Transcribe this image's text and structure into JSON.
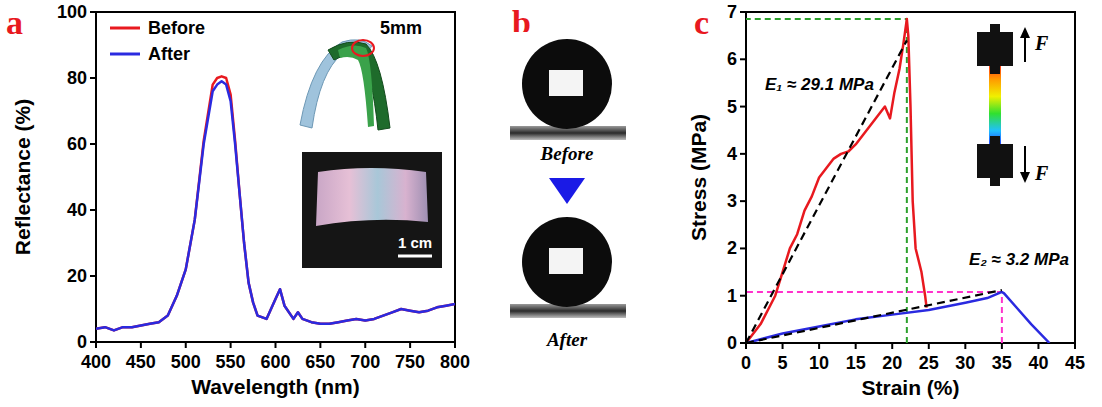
{
  "chart_data": [
    {
      "panel": "a",
      "type": "line",
      "xlabel": "Wavelength (nm)",
      "ylabel": "Reflectance (%)",
      "x": [
        400,
        410,
        420,
        430,
        440,
        450,
        460,
        470,
        480,
        490,
        500,
        510,
        520,
        530,
        535,
        540,
        545,
        550,
        555,
        560,
        565,
        570,
        575,
        580,
        590,
        600,
        605,
        610,
        620,
        625,
        630,
        640,
        650,
        660,
        670,
        680,
        690,
        700,
        710,
        720,
        730,
        740,
        750,
        760,
        770,
        780,
        790,
        800
      ],
      "series": [
        {
          "name": "Before",
          "color": "#e8191f",
          "values": [
            4,
            4.5,
            3.5,
            4.5,
            4.5,
            5,
            5.5,
            6,
            8,
            14,
            22,
            37,
            61,
            78,
            80,
            80.5,
            80,
            75,
            61,
            45,
            30,
            18,
            12,
            8,
            7,
            13,
            16,
            11,
            7,
            9,
            7,
            6,
            5.5,
            5.5,
            6,
            6.5,
            7,
            6.5,
            7,
            8,
            9,
            10,
            9.5,
            9,
            9.5,
            10.5,
            11,
            11.5
          ]
        },
        {
          "name": "After",
          "color": "#2a2ae0",
          "values": [
            4,
            4.5,
            3.5,
            4.5,
            4.5,
            5,
            5.5,
            6,
            8,
            14,
            22,
            37,
            60,
            76,
            78,
            79,
            78,
            73,
            60,
            45,
            30,
            18,
            12,
            8,
            7,
            13,
            16,
            11,
            7,
            9,
            7,
            6,
            5.5,
            5.5,
            6,
            6.5,
            7,
            6.5,
            7,
            8,
            9,
            10,
            9.5,
            9,
            9.5,
            10.5,
            11,
            11.5
          ]
        }
      ],
      "xlim": [
        400,
        800
      ],
      "xticks": [
        400,
        450,
        500,
        550,
        600,
        650,
        700,
        750,
        800
      ],
      "ylim": [
        0,
        100
      ],
      "yticks": [
        0,
        20,
        40,
        60,
        80,
        100
      ],
      "legend": "upper left",
      "annotations": [
        "5mm",
        "1 cm"
      ]
    },
    {
      "panel": "b",
      "type": "image",
      "captions": [
        "Before",
        "After"
      ]
    },
    {
      "panel": "c",
      "type": "line",
      "xlabel": "Strain (%)",
      "ylabel": "Stress (MPa)",
      "series": [
        {
          "color": "#e8191f",
          "x": [
            0,
            2,
            4,
            5,
            6,
            7,
            8,
            9,
            10,
            11,
            12,
            13,
            14,
            15,
            16,
            17,
            18,
            19,
            19.7,
            20.3,
            21,
            21.5,
            22,
            22.2,
            22.5,
            22.8,
            23.2,
            24,
            24.5,
            24.7
          ],
          "values": [
            0,
            0.4,
            1.0,
            1.5,
            2.0,
            2.3,
            2.8,
            3.1,
            3.5,
            3.7,
            3.9,
            4.0,
            4.05,
            4.2,
            4.4,
            4.6,
            4.8,
            5.0,
            4.75,
            5.3,
            5.8,
            6.3,
            6.85,
            6.5,
            5.0,
            3.0,
            2.0,
            1.5,
            1.0,
            0.75
          ]
        },
        {
          "color": "#2a2ae0",
          "x": [
            0,
            5,
            10,
            15,
            20,
            25,
            30,
            33,
            35,
            35.3,
            37,
            39,
            41.5
          ],
          "values": [
            0,
            0.2,
            0.35,
            0.5,
            0.6,
            0.7,
            0.85,
            0.95,
            1.08,
            1.05,
            0.75,
            0.4,
            0
          ]
        }
      ],
      "fits": [
        {
          "label": "E₁ ≈ 29.1 MPa",
          "x": [
            0,
            22
          ],
          "values": [
            0,
            6.4
          ],
          "color": "#000000",
          "line_style": "dashed"
        },
        {
          "label": "E₂ ≈ 3.2 MPa",
          "x": [
            0,
            35
          ],
          "values": [
            0,
            1.12
          ],
          "color": "#000000",
          "line_style": "dashed"
        }
      ],
      "guides": [
        {
          "x": 22,
          "y": 6.85,
          "color": "#2ca02c"
        },
        {
          "x": 35,
          "y": 1.08,
          "color": "#ff33cc"
        }
      ],
      "xlim": [
        0,
        45
      ],
      "xticks": [
        0,
        5,
        10,
        15,
        20,
        25,
        30,
        35,
        40,
        45
      ],
      "ylim": [
        0,
        7
      ],
      "yticks": [
        0,
        1,
        2,
        3,
        4,
        5,
        6,
        7
      ],
      "annotations": [
        "F",
        "F"
      ]
    }
  ]
}
